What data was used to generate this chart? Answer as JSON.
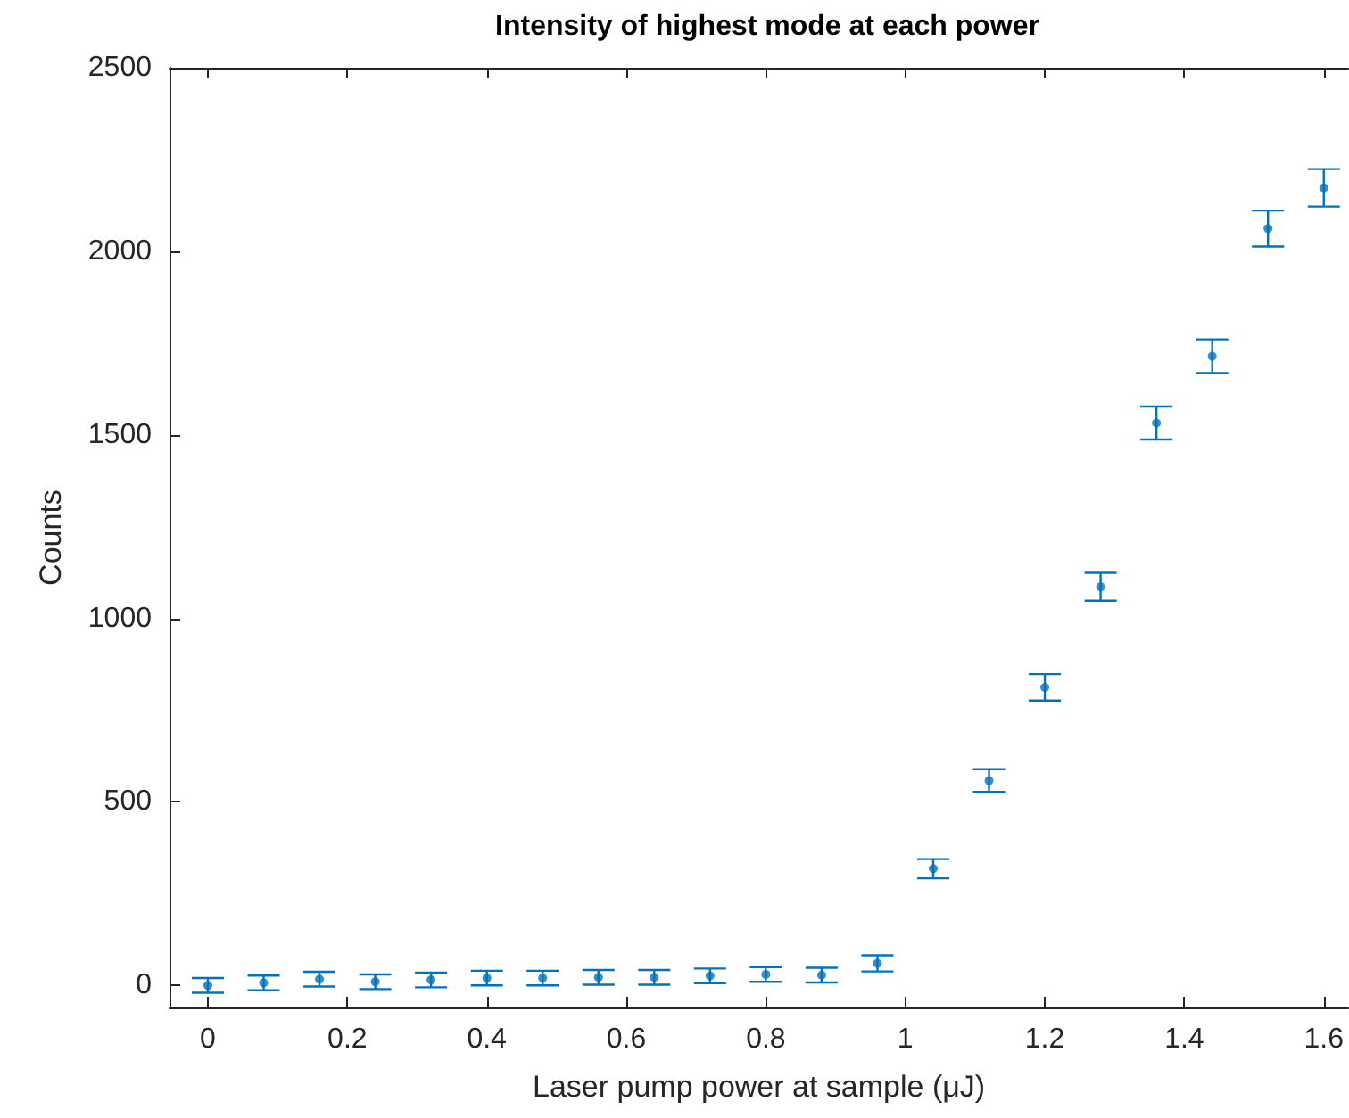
{
  "chart_data": {
    "type": "scatter",
    "title": "Intensity of highest mode at each power",
    "xlabel": "Laser pump power at sample (μJ)",
    "ylabel": "Counts",
    "x": [
      0,
      0.08,
      0.16,
      0.24,
      0.32,
      0.4,
      0.48,
      0.56,
      0.64,
      0.72,
      0.8,
      0.88,
      0.96,
      1.04,
      1.12,
      1.2,
      1.28,
      1.36,
      1.44,
      1.52,
      1.6
    ],
    "series": [
      {
        "color": "#0072bd",
        "values": [
          0,
          7,
          17,
          10,
          15,
          20,
          20,
          22,
          22,
          26,
          30,
          28,
          60,
          318,
          558,
          812,
          1086,
          1532,
          1714,
          2062,
          2173
        ],
        "errors": [
          20,
          20,
          20,
          20,
          20,
          20,
          20,
          20,
          20,
          20,
          20,
          20,
          22,
          26,
          31,
          36,
          38,
          45,
          46,
          49,
          51
        ]
      }
    ],
    "xlim": [
      -0.055,
      1.635
    ],
    "xticks": [
      0,
      0.2,
      0.4,
      0.6,
      0.8,
      1,
      1.2,
      1.4,
      1.6
    ],
    "ylim": [
      -60,
      2500
    ],
    "yticks": [
      0,
      500,
      1000,
      1500,
      2000,
      2500
    ],
    "marker": "circle"
  }
}
